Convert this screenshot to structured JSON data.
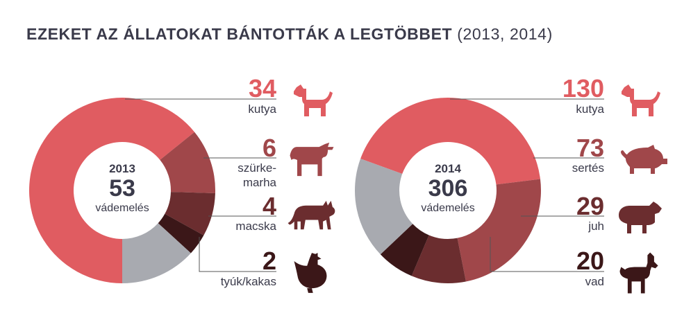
{
  "title": {
    "main": "EZEKET AZ ÁLLATOKAT BÁNTOTTÁK A LEGTÖBBET",
    "years": "(2013, 2014)"
  },
  "colors": {
    "kutya": "#e05c61",
    "szurkemarha": "#a0474a",
    "macska": "#6b2d2f",
    "tyuk": "#3b1718",
    "sertes": "#a0474a",
    "juh": "#6b2d2f",
    "vad": "#3b1718",
    "remaining": "#a8aab0",
    "text_dark": "#3a3a4a"
  },
  "chart_data": [
    {
      "type": "pie",
      "center_year": "2013",
      "center_value": "53",
      "center_unit": "vádemelés",
      "total": 53,
      "slices": [
        {
          "label": "kutya",
          "value": 34,
          "color": "#e05c61",
          "icon": "dog-icon"
        },
        {
          "label": "szürke-marha",
          "label_lines": [
            "szürke-",
            "marha"
          ],
          "value": 6,
          "color": "#a0474a",
          "icon": "cow-icon"
        },
        {
          "label": "macska",
          "value": 4,
          "color": "#6b2d2f",
          "icon": "cat-icon"
        },
        {
          "label": "tyúk/kakas",
          "value": 2,
          "color": "#3b1718",
          "icon": "chicken-icon"
        }
      ]
    },
    {
      "type": "pie",
      "center_year": "2014",
      "center_value": "306",
      "center_unit": "vádemelés",
      "total": 306,
      "slices": [
        {
          "label": "kutya",
          "value": 130,
          "color": "#e05c61",
          "icon": "dog-icon"
        },
        {
          "label": "sertés",
          "value": 73,
          "color": "#a0474a",
          "icon": "pig-icon"
        },
        {
          "label": "juh",
          "value": 29,
          "color": "#6b2d2f",
          "icon": "sheep-icon"
        },
        {
          "label": "vad",
          "value": 20,
          "color": "#3b1718",
          "icon": "goat-icon"
        }
      ]
    }
  ]
}
